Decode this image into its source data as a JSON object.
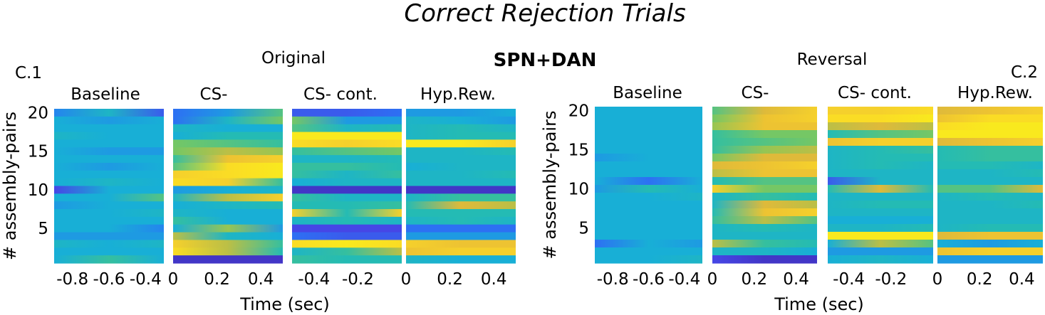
{
  "figure": {
    "title": "Correct Rejection Trials",
    "center_label": "SPN+DAN"
  },
  "chart_data": [
    {
      "type": "heatmap",
      "panel_label": "C.1",
      "subtitle": "Original",
      "ylabel": "# assembly-pairs",
      "xlabel": "Time (sec)",
      "ylim": [
        1,
        20
      ],
      "yticks": [
        5,
        10,
        15,
        20
      ],
      "segments": [
        {
          "title": "Baseline",
          "xticks": [
            "-0.8",
            "-0.6",
            "-0.4"
          ],
          "xlim": [
            -0.9,
            -0.3
          ],
          "tick_values": [
            -0.8,
            -0.6,
            -0.4
          ]
        },
        {
          "title": "CS-",
          "xticks": [
            "0",
            "0.2",
            "0.4"
          ],
          "xlim": [
            0,
            0.5
          ],
          "tick_values": [
            0,
            0.2,
            0.4
          ]
        },
        {
          "title": "CS- cont.",
          "xticks": [
            "-0.4",
            "-0.2"
          ],
          "xlim": [
            -0.5,
            0
          ],
          "tick_values": [
            -0.4,
            -0.2
          ]
        },
        {
          "title": "Hyp.Rew.",
          "xticks": [
            "0",
            "0.2",
            "0.4"
          ],
          "xlim": [
            0,
            0.5
          ],
          "tick_values": [
            0,
            0.2,
            0.4
          ]
        }
      ],
      "rows": [
        [
          [
            0.25,
            0.4,
            0.15
          ],
          [
            0.2,
            0.3,
            0.55
          ],
          [
            0.15,
            0.15,
            0.2
          ],
          [
            0.3,
            0.3,
            0.35
          ]
        ],
        [
          [
            0.35,
            0.3,
            0.35
          ],
          [
            0.2,
            0.4,
            0.6
          ],
          [
            0.6,
            0.3,
            0.3
          ],
          [
            0.4,
            0.35,
            0.3
          ]
        ],
        [
          [
            0.35,
            0.35,
            0.35
          ],
          [
            0.4,
            0.35,
            0.35
          ],
          [
            0.55,
            0.4,
            0.45
          ],
          [
            0.4,
            0.45,
            0.4
          ]
        ],
        [
          [
            0.4,
            0.35,
            0.35
          ],
          [
            0.35,
            0.45,
            0.45
          ],
          [
            0.95,
            0.95,
            0.95
          ],
          [
            0.4,
            0.45,
            0.45
          ]
        ],
        [
          [
            0.35,
            0.35,
            0.35
          ],
          [
            0.6,
            0.55,
            0.5
          ],
          [
            0.9,
            0.85,
            0.9
          ],
          [
            0.95,
            0.95,
            0.85
          ]
        ],
        [
          [
            0.35,
            0.3,
            0.3
          ],
          [
            0.6,
            0.7,
            0.65
          ],
          [
            0.5,
            0.55,
            0.6
          ],
          [
            0.4,
            0.4,
            0.45
          ]
        ],
        [
          [
            0.35,
            0.35,
            0.35
          ],
          [
            0.5,
            0.8,
            0.85
          ],
          [
            0.4,
            0.4,
            0.45
          ],
          [
            0.4,
            0.4,
            0.4
          ]
        ],
        [
          [
            0.35,
            0.3,
            0.35
          ],
          [
            0.55,
            0.9,
            0.95
          ],
          [
            0.5,
            0.5,
            0.45
          ],
          [
            0.35,
            0.4,
            0.4
          ]
        ],
        [
          [
            0.35,
            0.35,
            0.35
          ],
          [
            0.85,
            0.9,
            0.95
          ],
          [
            0.5,
            0.4,
            0.5
          ],
          [
            0.4,
            0.4,
            0.45
          ]
        ],
        [
          [
            0.35,
            0.4,
            0.35
          ],
          [
            0.9,
            0.85,
            0.5
          ],
          [
            0.35,
            0.4,
            0.4
          ],
          [
            0.4,
            0.4,
            0.4
          ]
        ],
        [
          [
            0.1,
            0.35,
            0.35
          ],
          [
            0.3,
            0.35,
            0.4
          ],
          [
            0.05,
            0.05,
            0.05
          ],
          [
            0.05,
            0.05,
            0.05
          ]
        ],
        [
          [
            0.35,
            0.35,
            0.55
          ],
          [
            0.4,
            0.7,
            0.85
          ],
          [
            0.5,
            0.4,
            0.4
          ],
          [
            0.4,
            0.5,
            0.5
          ]
        ],
        [
          [
            0.3,
            0.35,
            0.35
          ],
          [
            0.35,
            0.4,
            0.45
          ],
          [
            0.45,
            0.45,
            0.5
          ],
          [
            0.45,
            0.75,
            0.7
          ]
        ],
        [
          [
            0.35,
            0.35,
            0.4
          ],
          [
            0.4,
            0.35,
            0.35
          ],
          [
            0.85,
            0.45,
            0.85
          ],
          [
            0.45,
            0.45,
            0.45
          ]
        ],
        [
          [
            0.35,
            0.35,
            0.35
          ],
          [
            0.5,
            0.35,
            0.35
          ],
          [
            0.4,
            0.45,
            0.4
          ],
          [
            0.4,
            0.45,
            0.4
          ]
        ],
        [
          [
            0.35,
            0.35,
            0.25
          ],
          [
            0.35,
            0.65,
            0.3
          ],
          [
            0.1,
            0.1,
            0.1
          ],
          [
            0.2,
            0.2,
            0.2
          ]
        ],
        [
          [
            0.3,
            0.3,
            0.3
          ],
          [
            0.7,
            0.4,
            0.35
          ],
          [
            0.2,
            0.15,
            0.15
          ],
          [
            0.3,
            0.3,
            0.3
          ]
        ],
        [
          [
            0.4,
            0.35,
            0.4
          ],
          [
            0.85,
            0.7,
            0.5
          ],
          [
            0.9,
            0.95,
            0.9
          ],
          [
            0.85,
            0.8,
            0.8
          ]
        ],
        [
          [
            0.35,
            0.35,
            0.35
          ],
          [
            0.9,
            0.7,
            0.45
          ],
          [
            0.4,
            0.5,
            0.7
          ],
          [
            0.8,
            0.85,
            0.85
          ]
        ],
        [
          [
            0.35,
            0.5,
            0.35
          ],
          [
            0.05,
            0.05,
            0.05
          ],
          [
            0.5,
            0.45,
            0.45
          ],
          [
            0.4,
            0.35,
            0.35
          ]
        ]
      ]
    },
    {
      "type": "heatmap",
      "panel_label": "C.2",
      "subtitle": "Reversal",
      "ylabel": "# assembly-pairs",
      "xlabel": "Time (sec)",
      "ylim": [
        1,
        20
      ],
      "yticks": [
        5,
        10,
        15,
        20
      ],
      "segments": [
        {
          "title": "Baseline",
          "xticks": [
            "-0.8",
            "-0.6",
            "-0.4"
          ],
          "xlim": [
            -0.9,
            -0.3
          ],
          "tick_values": [
            -0.8,
            -0.6,
            -0.4
          ]
        },
        {
          "title": "CS-",
          "xticks": [
            "0",
            "0.2",
            "0.4"
          ],
          "xlim": [
            0,
            0.5
          ],
          "tick_values": [
            0,
            0.2,
            0.4
          ]
        },
        {
          "title": "CS- cont.",
          "xticks": [
            "-0.4",
            "-0.2"
          ],
          "xlim": [
            -0.5,
            0
          ],
          "tick_values": [
            -0.4,
            -0.2
          ]
        },
        {
          "title": "Hyp.Rew.",
          "xticks": [
            "0",
            "0.2",
            "0.4"
          ],
          "xlim": [
            0,
            0.5
          ],
          "tick_values": [
            0,
            0.2,
            0.4
          ]
        }
      ],
      "rows": [
        [
          [
            0.35,
            0.35,
            0.35
          ],
          [
            0.55,
            0.75,
            0.85
          ],
          [
            0.85,
            0.85,
            0.9
          ],
          [
            0.75,
            0.8,
            0.85
          ]
        ],
        [
          [
            0.35,
            0.35,
            0.35
          ],
          [
            0.6,
            0.8,
            0.85
          ],
          [
            0.9,
            0.9,
            0.95
          ],
          [
            0.8,
            0.9,
            0.9
          ]
        ],
        [
          [
            0.35,
            0.35,
            0.35
          ],
          [
            0.65,
            0.8,
            0.8
          ],
          [
            0.7,
            0.75,
            0.7
          ],
          [
            0.9,
            0.95,
            0.95
          ]
        ],
        [
          [
            0.35,
            0.35,
            0.35
          ],
          [
            0.5,
            0.6,
            0.6
          ],
          [
            0.45,
            0.55,
            0.6
          ],
          [
            0.95,
            0.95,
            0.95
          ]
        ],
        [
          [
            0.35,
            0.35,
            0.35
          ],
          [
            0.5,
            0.55,
            0.6
          ],
          [
            0.8,
            0.85,
            0.85
          ],
          [
            0.75,
            0.8,
            0.85
          ]
        ],
        [
          [
            0.35,
            0.35,
            0.35
          ],
          [
            0.5,
            0.65,
            0.7
          ],
          [
            0.4,
            0.45,
            0.5
          ],
          [
            0.45,
            0.5,
            0.5
          ]
        ],
        [
          [
            0.3,
            0.35,
            0.35
          ],
          [
            0.6,
            0.75,
            0.75
          ],
          [
            0.4,
            0.45,
            0.45
          ],
          [
            0.45,
            0.5,
            0.5
          ]
        ],
        [
          [
            0.35,
            0.35,
            0.35
          ],
          [
            0.75,
            0.8,
            0.85
          ],
          [
            0.4,
            0.45,
            0.4
          ],
          [
            0.45,
            0.45,
            0.4
          ]
        ],
        [
          [
            0.35,
            0.35,
            0.35
          ],
          [
            0.7,
            0.8,
            0.8
          ],
          [
            0.4,
            0.4,
            0.4
          ],
          [
            0.4,
            0.4,
            0.45
          ]
        ],
        [
          [
            0.35,
            0.2,
            0.35
          ],
          [
            0.45,
            0.55,
            0.55
          ],
          [
            0.15,
            0.4,
            0.4
          ],
          [
            0.4,
            0.4,
            0.4
          ]
        ],
        [
          [
            0.3,
            0.45,
            0.35
          ],
          [
            0.85,
            0.6,
            0.6
          ],
          [
            0.45,
            0.75,
            0.45
          ],
          [
            0.55,
            0.55,
            0.75
          ]
        ],
        [
          [
            0.35,
            0.35,
            0.4
          ],
          [
            0.4,
            0.5,
            0.45
          ],
          [
            0.4,
            0.4,
            0.4
          ],
          [
            0.4,
            0.45,
            0.4
          ]
        ],
        [
          [
            0.35,
            0.35,
            0.35
          ],
          [
            0.4,
            0.75,
            0.7
          ],
          [
            0.4,
            0.45,
            0.45
          ],
          [
            0.4,
            0.4,
            0.45
          ]
        ],
        [
          [
            0.35,
            0.35,
            0.35
          ],
          [
            0.45,
            0.8,
            0.85
          ],
          [
            0.4,
            0.4,
            0.4
          ],
          [
            0.4,
            0.4,
            0.4
          ]
        ],
        [
          [
            0.35,
            0.35,
            0.35
          ],
          [
            0.5,
            0.7,
            0.55
          ],
          [
            0.35,
            0.35,
            0.35
          ],
          [
            0.4,
            0.4,
            0.4
          ]
        ],
        [
          [
            0.35,
            0.35,
            0.35
          ],
          [
            0.4,
            0.45,
            0.4
          ],
          [
            0.4,
            0.4,
            0.45
          ],
          [
            0.4,
            0.45,
            0.45
          ]
        ],
        [
          [
            0.35,
            0.35,
            0.35
          ],
          [
            0.4,
            0.4,
            0.4
          ],
          [
            0.95,
            0.95,
            0.95
          ],
          [
            0.75,
            0.8,
            0.8
          ]
        ],
        [
          [
            0.2,
            0.35,
            0.3
          ],
          [
            0.7,
            0.5,
            0.45
          ],
          [
            0.35,
            0.7,
            0.55
          ],
          [
            0.35,
            0.3,
            0.35
          ]
        ],
        [
          [
            0.35,
            0.35,
            0.35
          ],
          [
            0.4,
            0.4,
            0.35
          ],
          [
            0.3,
            0.3,
            0.3
          ],
          [
            0.8,
            0.85,
            0.85
          ]
        ],
        [
          [
            0.35,
            0.35,
            0.4
          ],
          [
            0.1,
            0.05,
            0.05
          ],
          [
            0.35,
            0.4,
            0.35
          ],
          [
            0.3,
            0.3,
            0.3
          ]
        ]
      ]
    }
  ]
}
